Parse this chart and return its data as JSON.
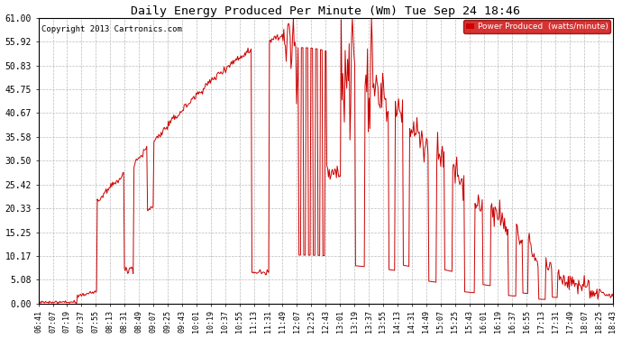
{
  "title": "Daily Energy Produced Per Minute (Wm) Tue Sep 24 18:46",
  "copyright": "Copyright 2013 Cartronics.com",
  "legend_label": "Power Produced  (watts/minute)",
  "legend_color": "#cc0000",
  "line_color": "#cc0000",
  "background_color": "#ffffff",
  "grid_color": "#bbbbbb",
  "ylim": [
    0,
    61.0
  ],
  "yticks": [
    0.0,
    5.08,
    10.17,
    15.25,
    20.33,
    25.42,
    30.5,
    35.58,
    40.67,
    45.75,
    50.83,
    55.92,
    61.0
  ],
  "ytick_labels": [
    "0.00",
    "5.08",
    "10.17",
    "15.25",
    "20.33",
    "25.42",
    "30.50",
    "35.58",
    "40.67",
    "45.75",
    "50.83",
    "55.92",
    "61.00"
  ],
  "xtick_labels": [
    "06:41",
    "07:07",
    "07:19",
    "07:37",
    "07:55",
    "08:13",
    "08:31",
    "08:49",
    "09:07",
    "09:25",
    "09:43",
    "10:01",
    "10:19",
    "10:37",
    "10:55",
    "11:13",
    "11:31",
    "11:49",
    "12:07",
    "12:25",
    "12:43",
    "13:01",
    "13:19",
    "13:37",
    "13:55",
    "14:13",
    "14:31",
    "14:49",
    "15:07",
    "15:25",
    "15:43",
    "16:01",
    "16:19",
    "16:37",
    "16:55",
    "17:13",
    "17:31",
    "17:49",
    "18:07",
    "18:25",
    "18:43"
  ]
}
